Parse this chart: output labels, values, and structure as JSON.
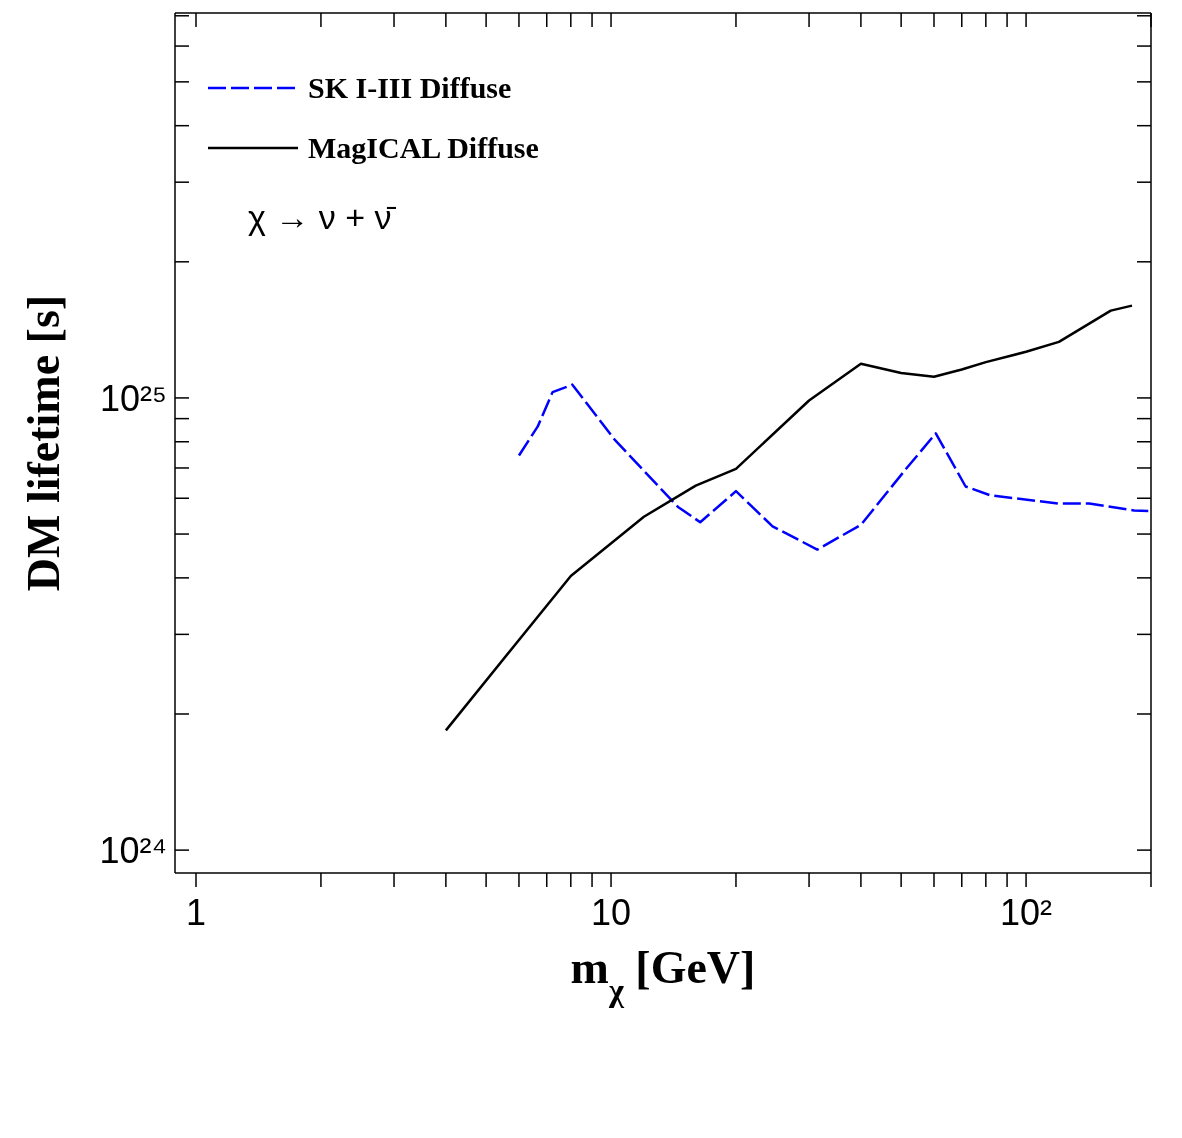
{
  "chart_data": {
    "type": "line",
    "xlabel": "m$_{χ}$ [GeV]",
    "ylabel": "DM lifetime [s]",
    "annotations": [
      "χ → ν + ν̄"
    ],
    "log": "xy",
    "xlim": [
      0.89,
      200
    ],
    "ylim": [
      8.9e+23,
      7.1e+25
    ],
    "xticks": [
      {
        "value": 1,
        "label": "1"
      },
      {
        "value": 2,
        "label": null
      },
      {
        "value": 3,
        "label": null
      },
      {
        "value": 4,
        "label": null
      },
      {
        "value": 5,
        "label": null
      },
      {
        "value": 6,
        "label": null
      },
      {
        "value": 7,
        "label": null
      },
      {
        "value": 8,
        "label": null
      },
      {
        "value": 9,
        "label": null
      },
      {
        "value": 10,
        "label": "10"
      },
      {
        "value": 20,
        "label": null
      },
      {
        "value": 30,
        "label": null
      },
      {
        "value": 40,
        "label": null
      },
      {
        "value": 50,
        "label": null
      },
      {
        "value": 60,
        "label": null
      },
      {
        "value": 70,
        "label": null
      },
      {
        "value": 80,
        "label": null
      },
      {
        "value": 90,
        "label": null
      },
      {
        "value": 100,
        "label": "10²"
      },
      {
        "value": 200,
        "label": null
      }
    ],
    "yticks": [
      {
        "value": 1e+24,
        "label": "10²⁴"
      },
      {
        "value": 2e+24,
        "label": null
      },
      {
        "value": 3e+24,
        "label": null
      },
      {
        "value": 4e+24,
        "label": null
      },
      {
        "value": 5e+24,
        "label": null
      },
      {
        "value": 6e+24,
        "label": null
      },
      {
        "value": 7e+24,
        "label": null
      },
      {
        "value": 8e+24,
        "label": null
      },
      {
        "value": 9e+24,
        "label": null
      },
      {
        "value": 1e+25,
        "label": "10²⁵"
      },
      {
        "value": 2e+25,
        "label": null
      },
      {
        "value": 3e+25,
        "label": null
      },
      {
        "value": 4e+25,
        "label": null
      },
      {
        "value": 5e+25,
        "label": null
      },
      {
        "value": 6e+25,
        "label": null
      },
      {
        "value": 7e+25,
        "label": null
      }
    ],
    "legend": "top left",
    "marker": "none",
    "series": [
      {
        "name": "SK I-III Diffuse",
        "color": "#0000ff",
        "line_style": "dashed",
        "x": [
          6,
          6.66,
          7.23,
          8.07,
          10.2,
          12,
          14.5,
          16.4,
          20,
          24.5,
          31.4,
          40,
          51.4,
          60.6,
          71.5,
          82,
          120,
          142,
          182,
          197
        ],
        "values": [
          7.46e+24,
          8.65e+24,
          1.03e+25,
          1.07e+25,
          8.09e+24,
          6.9e+24,
          5.74e+24,
          5.31e+24,
          6.22e+24,
          5.2e+24,
          4.62e+24,
          5.24e+24,
          6.97e+24,
          8.35e+24,
          6.37e+24,
          6.09e+24,
          5.84e+24,
          5.84e+24,
          5.64e+24,
          5.62e+24
        ]
      },
      {
        "name": "MagICAL Diffuse",
        "color": "#000000",
        "line_style": "solid",
        "x": [
          4,
          8,
          12,
          16,
          20,
          30,
          40,
          50,
          60,
          70,
          80,
          100,
          120,
          160,
          180
        ],
        "values": [
          1.84e+24,
          4.04e+24,
          5.46e+24,
          6.4e+24,
          6.97e+24,
          9.87e+24,
          1.19e+25,
          1.135e+25,
          1.114e+25,
          1.156e+25,
          1.2e+25,
          1.265e+25,
          1.33e+25,
          1.56e+25,
          1.6e+25
        ]
      }
    ]
  }
}
